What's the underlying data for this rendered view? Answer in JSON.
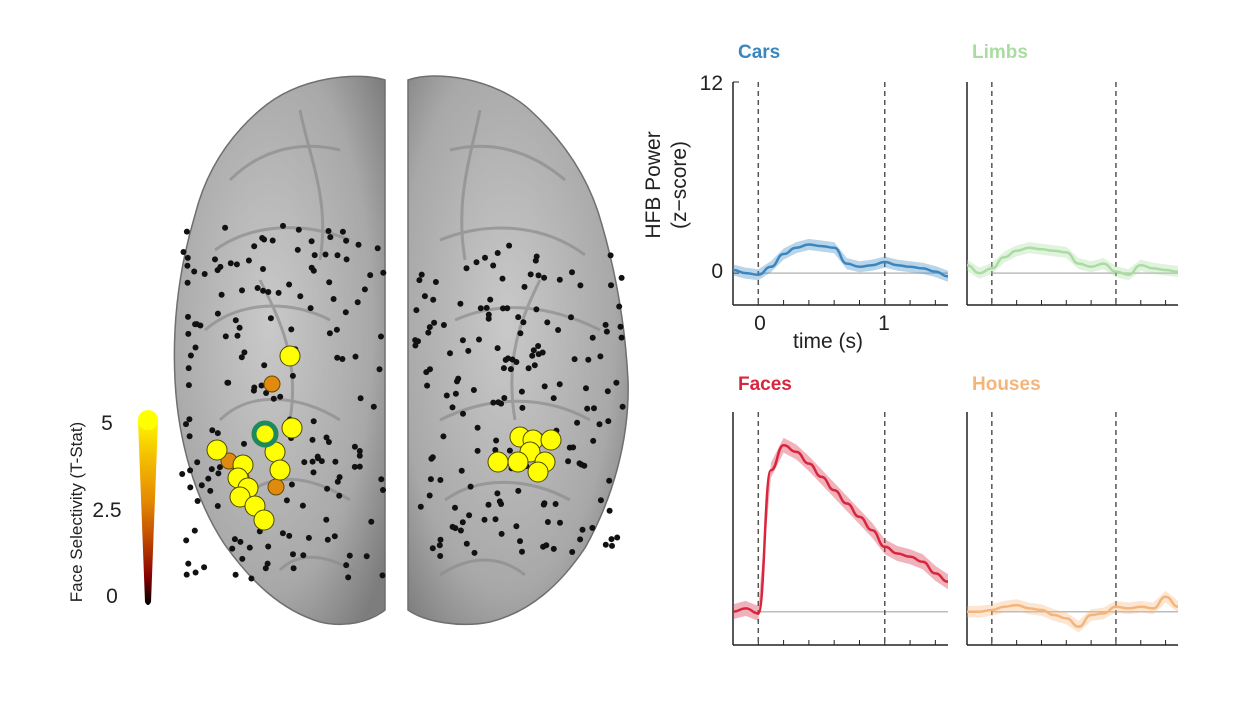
{
  "figure": {
    "colorbar": {
      "label": "Face Selectivity (T-Stat)",
      "ticks": [
        "5",
        "2.5",
        "0"
      ],
      "colormap": [
        "#ffff00",
        "#f5c400",
        "#e58a00",
        "#c04a00",
        "#8b0000",
        "#000000"
      ]
    },
    "brain": {
      "surface_color": "#b4b4b4",
      "highlight_color": "#1e8a5c"
    },
    "panels": [
      {
        "title": "Cars",
        "color": "#3a87c0"
      },
      {
        "title": "Limbs",
        "color": "#a9dca0"
      },
      {
        "title": "Faces",
        "color": "#d7263d"
      },
      {
        "title": "Houses",
        "color": "#f5b57a"
      }
    ],
    "y_axis": {
      "label_line1": "HFB Power",
      "label_line2": "(z−score)",
      "ticks": [
        "12",
        "0"
      ]
    },
    "x_axis": {
      "label": "time (s)",
      "ticks": [
        "0",
        "1"
      ]
    }
  },
  "chart_data": {
    "type": "line",
    "x": [
      -0.2,
      -0.1,
      0.0,
      0.1,
      0.2,
      0.3,
      0.4,
      0.5,
      0.6,
      0.7,
      0.8,
      0.9,
      1.0,
      1.1,
      1.2,
      1.3,
      1.4,
      1.5
    ],
    "xlabel": "time (s)",
    "ylabel": "HFB Power (z−score)",
    "xlim": [
      -0.2,
      1.5
    ],
    "ylim": [
      -2,
      12
    ],
    "stimulus_markers": [
      0,
      1
    ],
    "series": [
      {
        "name": "Cars",
        "values": [
          0.2,
          0.0,
          -0.1,
          0.4,
          1.2,
          1.6,
          1.8,
          1.7,
          1.6,
          0.6,
          0.4,
          0.5,
          0.7,
          0.5,
          0.4,
          0.3,
          0.1,
          -0.2
        ]
      },
      {
        "name": "Limbs",
        "values": [
          0.5,
          0.0,
          0.3,
          1.0,
          1.4,
          1.6,
          1.5,
          1.4,
          1.3,
          0.6,
          0.4,
          0.6,
          0.1,
          -0.1,
          0.5,
          0.3,
          0.2,
          0.1
        ]
      },
      {
        "name": "Faces",
        "values": [
          0.0,
          0.2,
          -0.1,
          8.5,
          10.0,
          9.6,
          8.9,
          8.1,
          7.3,
          6.5,
          5.7,
          4.9,
          3.9,
          3.5,
          3.3,
          3.0,
          2.3,
          1.8
        ]
      },
      {
        "name": "Houses",
        "values": [
          0.0,
          0.0,
          0.1,
          0.3,
          0.4,
          0.2,
          0.1,
          -0.2,
          -0.4,
          -0.9,
          -0.2,
          -0.1,
          0.3,
          0.2,
          0.3,
          0.2,
          0.9,
          0.3
        ]
      }
    ]
  }
}
